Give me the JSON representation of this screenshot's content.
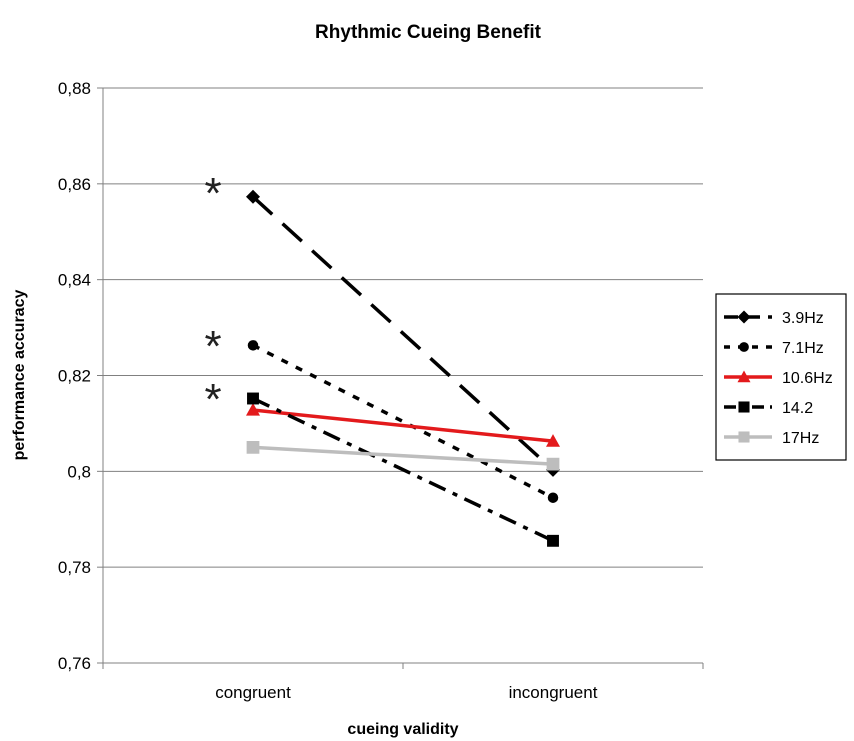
{
  "chart_data": {
    "type": "line",
    "title": "Rhythmic Cueing Benefit",
    "xlabel": "cueing validity",
    "ylabel": "performance accuracy",
    "categories": [
      "congruent",
      "incongruent"
    ],
    "ylim": [
      0.76,
      0.88
    ],
    "yticks": [
      "0,76",
      "0,78",
      "0,8",
      "0,82",
      "0,84",
      "0,86",
      "0,88"
    ],
    "ytick_values": [
      0.76,
      0.78,
      0.8,
      0.82,
      0.84,
      0.86,
      0.88
    ],
    "grid": "horizontal",
    "legend_position": "right",
    "series": [
      {
        "name": "3.9Hz",
        "values": [
          0.8573,
          0.8003
        ],
        "color": "#000000",
        "dash": "long-dash",
        "marker": "diamond"
      },
      {
        "name": "7.1Hz",
        "values": [
          0.8263,
          0.7945
        ],
        "color": "#000000",
        "dash": "dotted",
        "marker": "circle"
      },
      {
        "name": "10.6Hz",
        "values": [
          0.8128,
          0.8063
        ],
        "color": "#e31a1c",
        "dash": "solid",
        "marker": "triangle"
      },
      {
        "name": "14.2",
        "values": [
          0.8152,
          0.7855
        ],
        "color": "#000000",
        "dash": "dash-dot",
        "marker": "square"
      },
      {
        "name": "17Hz",
        "values": [
          0.805,
          0.8015
        ],
        "color": "#bdbdbd",
        "dash": "solid",
        "marker": "square"
      }
    ],
    "annotations": [
      {
        "text": "*",
        "category": "congruent",
        "y": 0.86
      },
      {
        "text": "*",
        "category": "congruent",
        "y": 0.828
      },
      {
        "text": "*",
        "category": "congruent",
        "y": 0.817
      }
    ]
  }
}
